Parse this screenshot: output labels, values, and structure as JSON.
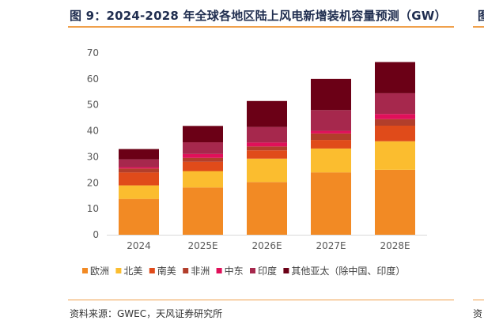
{
  "figure": {
    "title": "图 9：2024-2028 年全球各地区陆上风电新增装机容量预测（GW）",
    "title_right_fragment": "图",
    "source": "资料来源：GWEC，天风证券研究所",
    "source_right_fragment": "资"
  },
  "chart_data": {
    "type": "bar",
    "stacked": true,
    "categories": [
      "2024",
      "2025E",
      "2026E",
      "2027E",
      "2028E"
    ],
    "ylim": [
      0,
      70
    ],
    "yticks": [
      0,
      10,
      20,
      30,
      40,
      50,
      60,
      70
    ],
    "grid": false,
    "legend_position": "bottom",
    "series": [
      {
        "name": "欧洲",
        "color": "#f28a24",
        "values": [
          13.8,
          18.2,
          20.3,
          24.0,
          25.0
        ]
      },
      {
        "name": "北美",
        "color": "#fbbd2f",
        "values": [
          5.2,
          6.3,
          9.0,
          9.2,
          11.0
        ]
      },
      {
        "name": "南美",
        "color": "#e04b1a",
        "values": [
          5.0,
          3.6,
          3.2,
          3.3,
          6.0
        ]
      },
      {
        "name": "非洲",
        "color": "#b23e2b",
        "values": [
          1.5,
          1.5,
          1.5,
          2.5,
          2.5
        ]
      },
      {
        "name": "中东",
        "color": "#e0105a",
        "values": [
          0.5,
          1.5,
          1.5,
          1.0,
          2.0
        ]
      },
      {
        "name": "印度",
        "color": "#a6284d",
        "values": [
          3.0,
          4.5,
          6.0,
          8.0,
          8.0
        ]
      },
      {
        "name": "其他亚太（除中国、印度）",
        "color": "#6b0016",
        "values": [
          4.0,
          6.3,
          10.0,
          12.0,
          12.0
        ]
      }
    ]
  }
}
